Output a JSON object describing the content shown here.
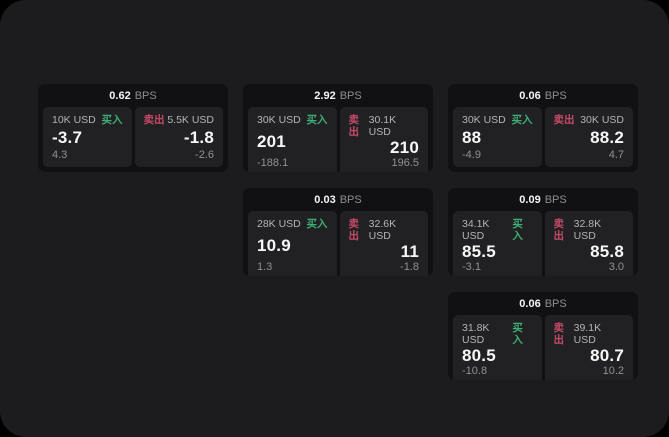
{
  "app": {
    "background": "#000000",
    "surface_background": "#1c1c1e"
  },
  "labels": {
    "bps_unit": "BPS",
    "buy": "买入",
    "sell": "卖出"
  },
  "colors": {
    "buy_accent": "#3fae74",
    "sell_accent": "#c64a68",
    "card_background": "#111113",
    "panel_background": "#212124"
  },
  "cards": [
    {
      "bps": "0.62",
      "buy": {
        "amount": "10K USD",
        "price": "-3.7",
        "change": "4.3"
      },
      "sell": {
        "amount": "5.5K USD",
        "price": "-1.8",
        "change": "-2.6"
      }
    },
    {
      "bps": "2.92",
      "buy": {
        "amount": "30K USD",
        "price": "201",
        "change": "-188.1"
      },
      "sell": {
        "amount": "30.1K USD",
        "price": "210",
        "change": "196.5"
      }
    },
    {
      "bps": "0.06",
      "buy": {
        "amount": "30K USD",
        "price": "88",
        "change": "-4.9"
      },
      "sell": {
        "amount": "30K USD",
        "price": "88.2",
        "change": "4.7"
      }
    },
    {
      "bps": "0.03",
      "buy": {
        "amount": "28K USD",
        "price": "10.9",
        "change": "1.3"
      },
      "sell": {
        "amount": "32.6K USD",
        "price": "11",
        "change": "-1.8"
      }
    },
    {
      "bps": "0.09",
      "buy": {
        "amount": "34.1K USD",
        "price": "85.5",
        "change": "-3.1"
      },
      "sell": {
        "amount": "32.8K USD",
        "price": "85.8",
        "change": "3.0"
      }
    },
    {
      "bps": "0.06",
      "buy": {
        "amount": "31.8K USD",
        "price": "80.5",
        "change": "-10.8"
      },
      "sell": {
        "amount": "39.1K USD",
        "price": "80.7",
        "change": "10.2"
      }
    }
  ]
}
